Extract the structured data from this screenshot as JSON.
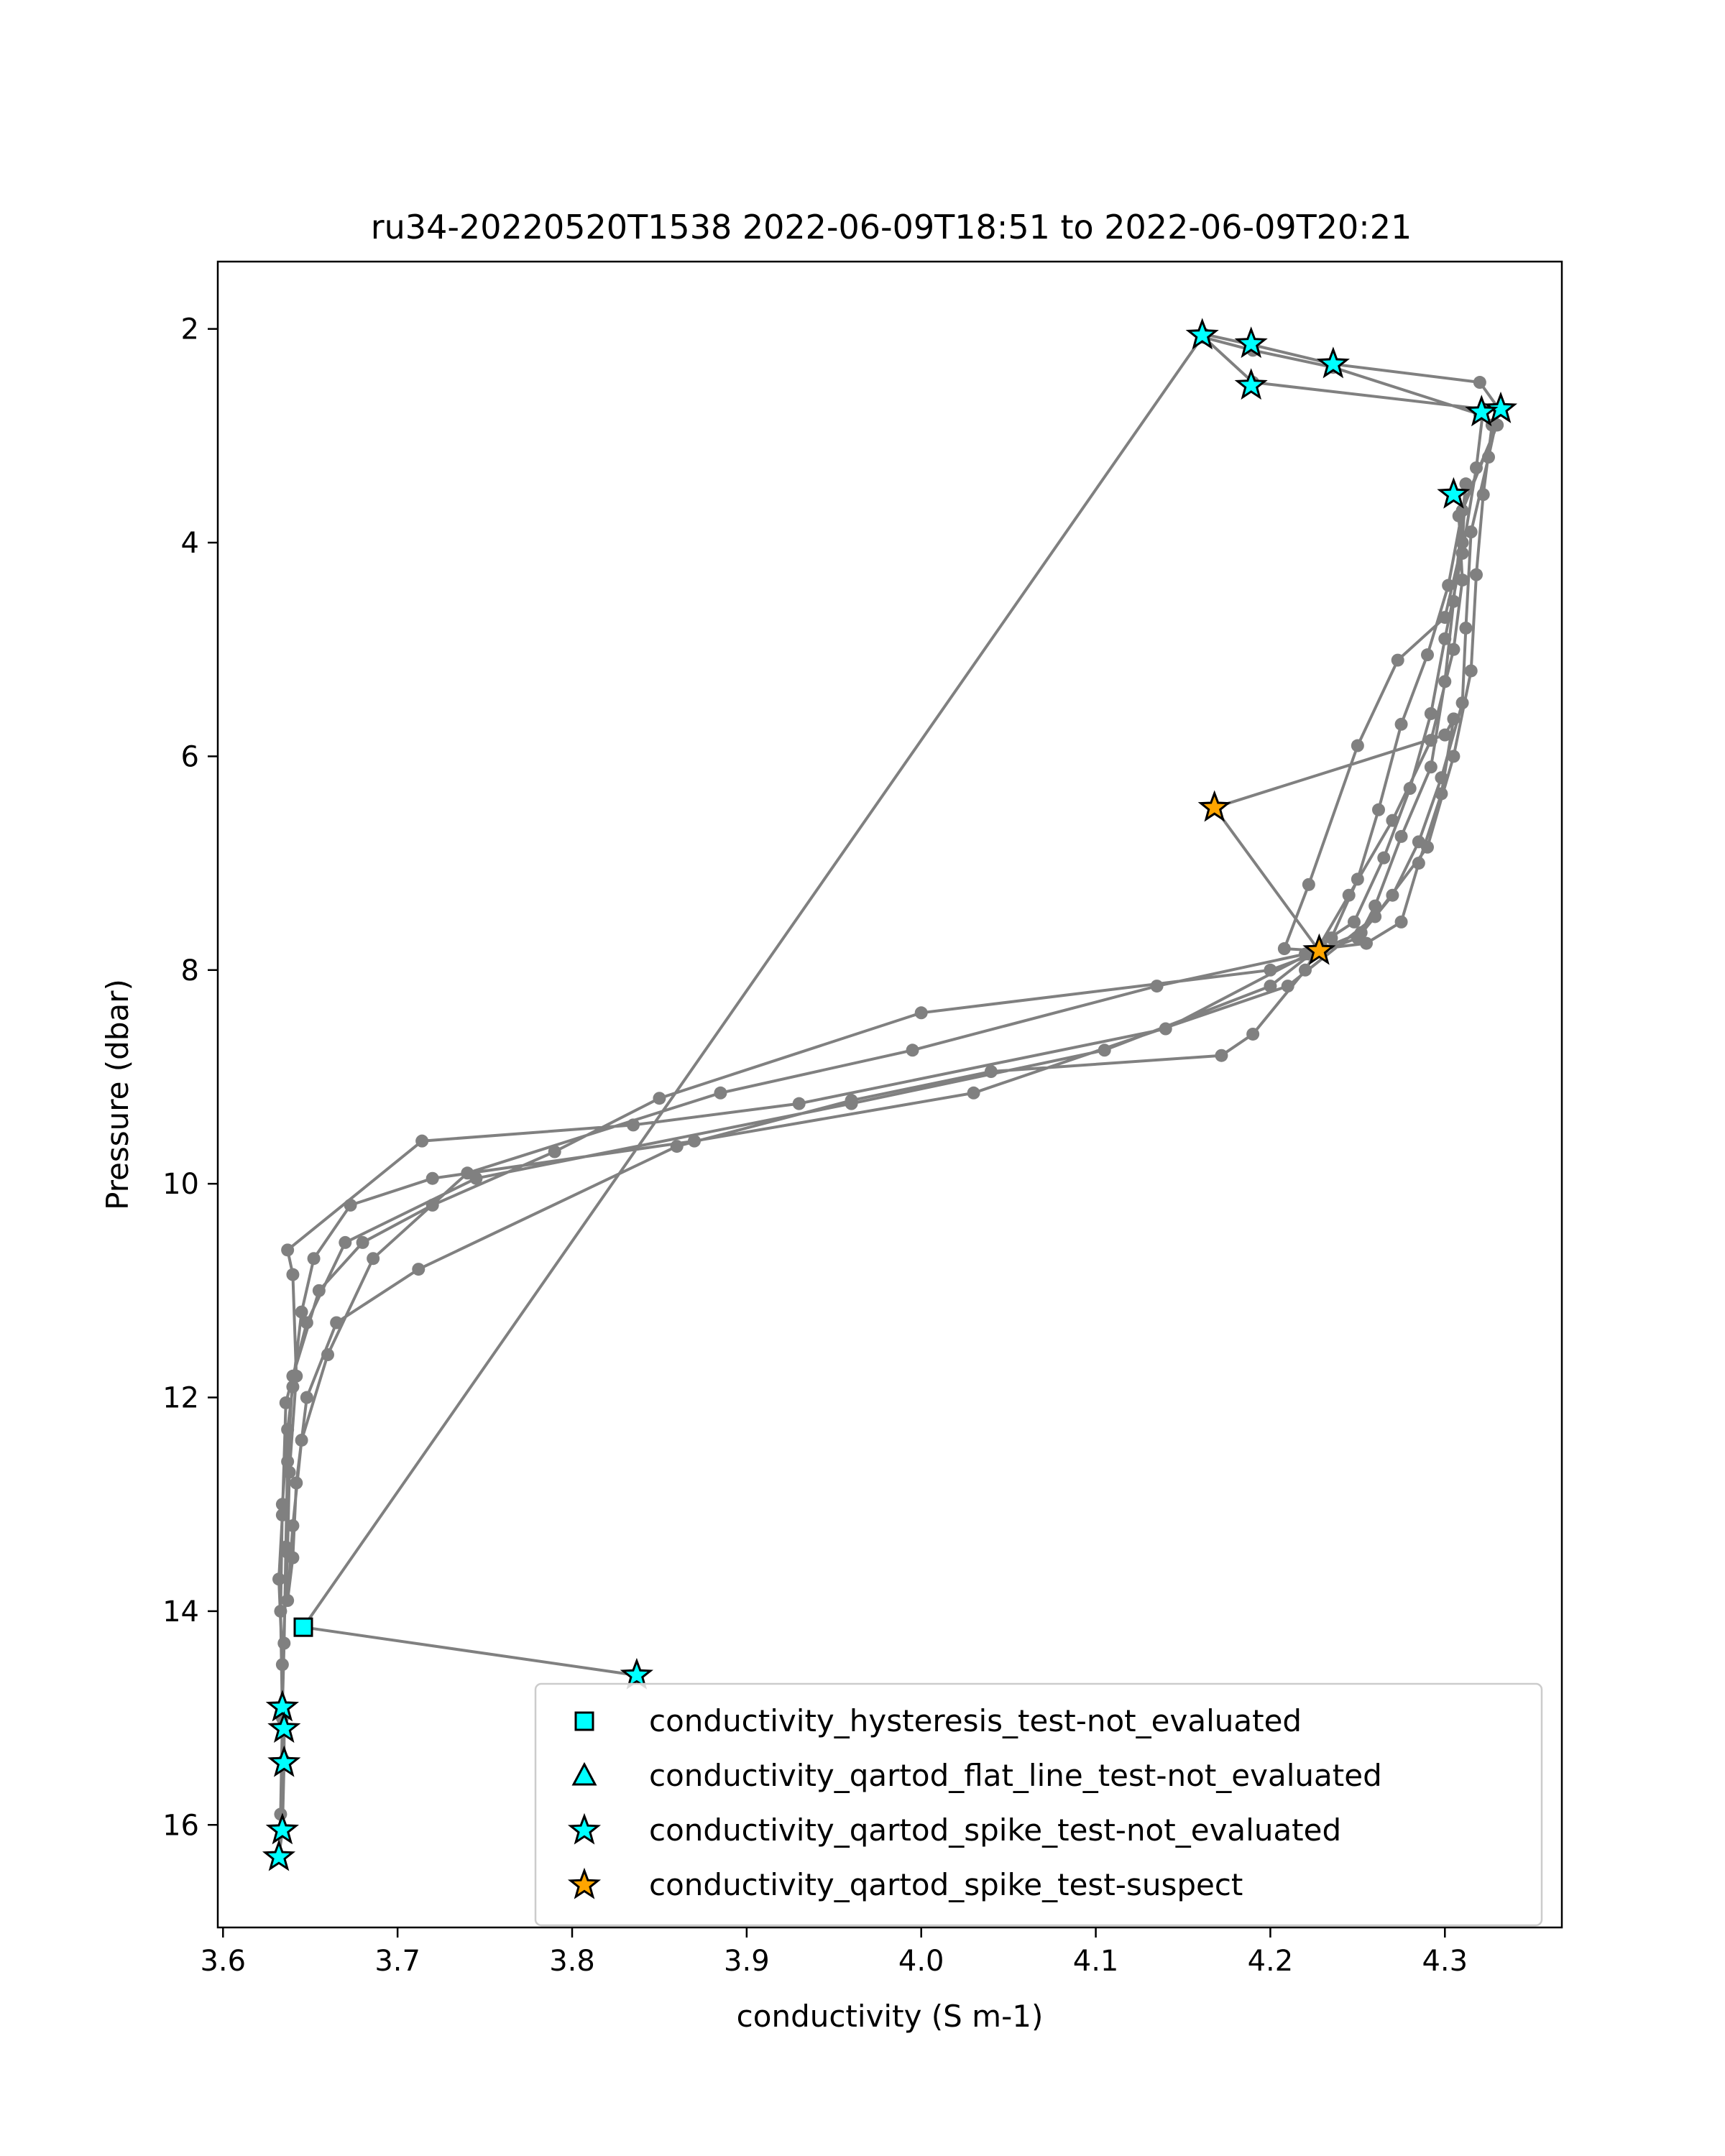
{
  "chart_data": {
    "type": "scatter",
    "title": "ru34-20220520T1538 2022-06-09T18:51 to 2022-06-09T20:21",
    "xlabel": "conductivity (S m-1)",
    "ylabel": "Pressure (dbar)",
    "xlim": [
      3.597,
      4.367
    ],
    "ylim": [
      16.96,
      1.37
    ],
    "y_inverted": true,
    "grid": false,
    "legend_position": "lower-right",
    "x_ticks": [
      {
        "value": 3.6,
        "label": "3.6"
      },
      {
        "value": 3.7,
        "label": "3.7"
      },
      {
        "value": 3.8,
        "label": "3.8"
      },
      {
        "value": 3.9,
        "label": "3.9"
      },
      {
        "value": 4.0,
        "label": "4.0"
      },
      {
        "value": 4.1,
        "label": "4.1"
      },
      {
        "value": 4.2,
        "label": "4.2"
      },
      {
        "value": 4.3,
        "label": "4.3"
      }
    ],
    "y_ticks": [
      {
        "value": 2,
        "label": "2"
      },
      {
        "value": 4,
        "label": "4"
      },
      {
        "value": 6,
        "label": "6"
      },
      {
        "value": 8,
        "label": "8"
      },
      {
        "value": 10,
        "label": "10"
      },
      {
        "value": 12,
        "label": "12"
      },
      {
        "value": 14,
        "label": "14"
      },
      {
        "value": 16,
        "label": "16"
      }
    ],
    "profile_line": {
      "color": "#808080",
      "points": [
        [
          3.837,
          14.6
        ],
        [
          3.646,
          14.15
        ],
        [
          4.162,
          2.05
        ],
        [
          4.19,
          2.15
        ],
        [
          4.236,
          2.33
        ],
        [
          4.32,
          2.5
        ],
        [
          4.331,
          2.75
        ],
        [
          4.325,
          3.2
        ],
        [
          4.315,
          3.9
        ],
        [
          4.312,
          4.8
        ],
        [
          4.31,
          5.5
        ],
        [
          4.298,
          6.2
        ],
        [
          4.285,
          6.8
        ],
        [
          4.27,
          7.3
        ],
        [
          4.25,
          7.7
        ],
        [
          4.2,
          8.0
        ],
        [
          4.0,
          8.4
        ],
        [
          3.85,
          9.2
        ],
        [
          3.79,
          9.7
        ],
        [
          3.72,
          10.2
        ],
        [
          3.68,
          10.55
        ],
        [
          3.655,
          11.0
        ],
        [
          3.64,
          11.8
        ],
        [
          3.637,
          12.6
        ],
        [
          3.636,
          13.4
        ],
        [
          3.635,
          14.3
        ],
        [
          3.634,
          14.9
        ],
        [
          3.635,
          15.1
        ],
        [
          3.635,
          15.4
        ],
        [
          3.634,
          16.05
        ],
        [
          3.632,
          16.3
        ],
        [
          3.633,
          15.9
        ],
        [
          3.634,
          15.0
        ],
        [
          3.633,
          14.0
        ],
        [
          3.634,
          13.0
        ],
        [
          3.637,
          12.3
        ],
        [
          3.64,
          11.9
        ],
        [
          3.645,
          11.2
        ],
        [
          3.652,
          10.7
        ],
        [
          3.673,
          10.2
        ],
        [
          3.72,
          9.95
        ],
        [
          3.87,
          9.6
        ],
        [
          4.03,
          9.15
        ],
        [
          4.21,
          8.15
        ],
        [
          4.26,
          7.5
        ],
        [
          4.29,
          6.85
        ],
        [
          4.305,
          6.0
        ],
        [
          4.315,
          5.2
        ],
        [
          4.318,
          4.3
        ],
        [
          4.322,
          3.55
        ],
        [
          4.327,
          2.9
        ],
        [
          4.32,
          2.8
        ],
        [
          4.236,
          2.36
        ],
        [
          4.19,
          2.2
        ],
        [
          4.162,
          2.08
        ],
        [
          4.19,
          2.5
        ],
        [
          4.322,
          2.75
        ],
        [
          4.318,
          3.3
        ],
        [
          4.31,
          4.1
        ],
        [
          4.3,
          4.9
        ],
        [
          4.292,
          5.6
        ],
        [
          4.28,
          6.3
        ],
        [
          4.265,
          6.95
        ],
        [
          4.248,
          7.55
        ],
        [
          4.22,
          7.85
        ],
        [
          4.135,
          8.15
        ],
        [
          3.995,
          8.75
        ],
        [
          3.885,
          9.15
        ],
        [
          3.74,
          9.9
        ],
        [
          3.686,
          10.7
        ],
        [
          3.66,
          11.6
        ],
        [
          3.645,
          12.4
        ],
        [
          3.64,
          13.2
        ],
        [
          3.637,
          13.9
        ],
        [
          3.64,
          13.5
        ],
        [
          3.642,
          12.8
        ],
        [
          3.648,
          12.0
        ],
        [
          3.665,
          11.3
        ],
        [
          3.712,
          10.8
        ],
        [
          3.86,
          9.65
        ],
        [
          3.96,
          9.22
        ],
        [
          4.04,
          8.95
        ],
        [
          4.172,
          8.8
        ],
        [
          4.19,
          8.6
        ],
        [
          4.22,
          8.0
        ],
        [
          4.245,
          7.3
        ],
        [
          4.27,
          6.6
        ],
        [
          4.292,
          5.85
        ],
        [
          4.305,
          5.0
        ],
        [
          4.31,
          4.35
        ],
        [
          4.308,
          3.75
        ],
        [
          4.33,
          2.9
        ],
        [
          4.31,
          3.7
        ],
        [
          4.302,
          4.4
        ],
        [
          4.29,
          5.05
        ],
        [
          4.275,
          5.7
        ],
        [
          4.262,
          6.5
        ],
        [
          4.25,
          7.15
        ],
        [
          4.235,
          7.7
        ],
        [
          4.2,
          8.15
        ],
        [
          4.105,
          8.75
        ],
        [
          3.96,
          9.25
        ],
        [
          3.745,
          9.95
        ],
        [
          3.67,
          10.55
        ],
        [
          3.648,
          11.3
        ],
        [
          3.636,
          12.05
        ],
        [
          3.634,
          13.1
        ],
        [
          3.632,
          13.7
        ],
        [
          3.634,
          14.5
        ],
        [
          3.637,
          13.45
        ],
        [
          3.638,
          12.7
        ],
        [
          3.642,
          11.8
        ],
        [
          3.64,
          10.85
        ],
        [
          3.637,
          10.62
        ],
        [
          3.714,
          9.6
        ],
        [
          3.835,
          9.45
        ],
        [
          3.93,
          9.25
        ],
        [
          4.14,
          8.55
        ],
        [
          4.222,
          7.85
        ],
        [
          4.252,
          7.65
        ],
        [
          4.26,
          7.4
        ],
        [
          4.275,
          6.75
        ],
        [
          4.292,
          6.1
        ],
        [
          4.3,
          5.3
        ],
        [
          4.305,
          4.55
        ],
        [
          4.312,
          3.45
        ],
        [
          4.31,
          4.0
        ],
        [
          4.3,
          4.7
        ],
        [
          4.273,
          5.1
        ],
        [
          4.25,
          5.9
        ],
        [
          4.222,
          7.2
        ],
        [
          4.208,
          7.8
        ],
        [
          4.228,
          7.82
        ],
        [
          4.168,
          6.48
        ],
        [
          4.3,
          5.8
        ],
        [
          4.305,
          5.65
        ],
        [
          4.298,
          6.35
        ],
        [
          4.285,
          7.0
        ],
        [
          4.275,
          7.55
        ],
        [
          4.255,
          7.75
        ],
        [
          4.23,
          7.8
        ]
      ]
    },
    "series": [
      {
        "name": "conductivity_hysteresis_test-not_evaluated",
        "marker": "square",
        "color": "#00ffff",
        "points": [
          [
            3.646,
            14.15
          ]
        ]
      },
      {
        "name": "conductivity_qartod_flat_line_test-not_evaluated",
        "marker": "triangle",
        "color": "#00ffff",
        "points": []
      },
      {
        "name": "conductivity_qartod_spike_test-not_evaluated",
        "marker": "star",
        "color": "#00ffff",
        "points": [
          [
            4.161,
            2.06
          ],
          [
            4.189,
            2.14
          ],
          [
            4.236,
            2.33
          ],
          [
            4.189,
            2.53
          ],
          [
            4.332,
            2.75
          ],
          [
            4.321,
            2.78
          ],
          [
            4.305,
            3.55
          ],
          [
            3.837,
            14.6
          ],
          [
            3.634,
            14.9
          ],
          [
            3.635,
            15.1
          ],
          [
            3.635,
            15.42
          ],
          [
            3.634,
            16.05
          ],
          [
            3.632,
            16.3
          ]
        ]
      },
      {
        "name": "conductivity_qartod_spike_test-suspect",
        "marker": "star",
        "color": "#ffa500",
        "points": [
          [
            4.168,
            6.48
          ],
          [
            4.228,
            7.82
          ]
        ]
      }
    ]
  }
}
